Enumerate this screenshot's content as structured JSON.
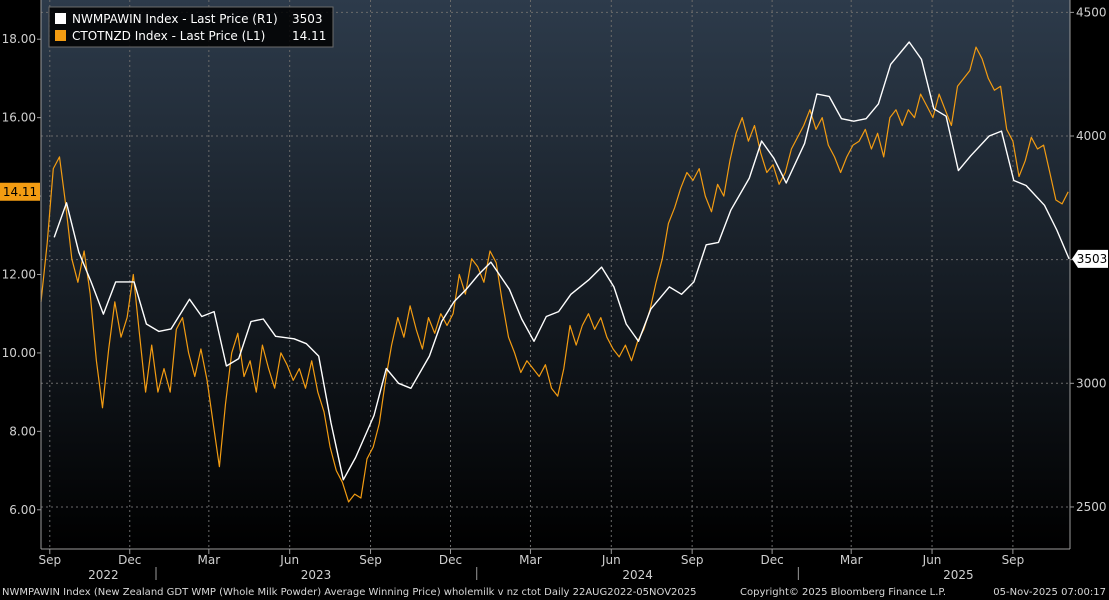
{
  "chart_data": {
    "type": "line",
    "x_range": [
      "2022-08-22",
      "2025-11-05"
    ],
    "left_axis": {
      "ylim": [
        5.0,
        19.0
      ],
      "ticks": [
        "6.00",
        "8.00",
        "10.00",
        "12.00",
        "14.00",
        "16.00",
        "18.00"
      ],
      "tick_values": [
        6,
        8,
        10,
        12,
        14,
        16,
        18
      ]
    },
    "right_axis": {
      "ylim": [
        2330,
        4550
      ],
      "ticks": [
        "2500",
        "3000",
        "3500",
        "4000",
        "4500"
      ],
      "tick_values": [
        2500,
        3000,
        3500,
        4000,
        4500
      ]
    },
    "month_ticks": [
      {
        "label": "Sep",
        "date": "2022-09-01"
      },
      {
        "label": "Dec",
        "date": "2022-12-01"
      },
      {
        "label": "Mar",
        "date": "2023-03-01"
      },
      {
        "label": "Jun",
        "date": "2023-06-01"
      },
      {
        "label": "Sep",
        "date": "2023-09-01"
      },
      {
        "label": "Dec",
        "date": "2023-12-01"
      },
      {
        "label": "Mar",
        "date": "2024-03-01"
      },
      {
        "label": "Jun",
        "date": "2024-06-01"
      },
      {
        "label": "Sep",
        "date": "2024-09-01"
      },
      {
        "label": "Dec",
        "date": "2024-12-01"
      },
      {
        "label": "Mar",
        "date": "2025-03-01"
      },
      {
        "label": "Jun",
        "date": "2025-06-01"
      },
      {
        "label": "Sep",
        "date": "2025-09-01"
      }
    ],
    "year_labels": [
      {
        "label": "2022",
        "date": "2022-11-01"
      },
      {
        "label": "2023",
        "date": "2023-07-01"
      },
      {
        "label": "2024",
        "date": "2024-07-01"
      },
      {
        "label": "2025",
        "date": "2025-07-01"
      }
    ],
    "year_separators": [
      "2023-01-01",
      "2024-01-01",
      "2025-01-01"
    ],
    "series": [
      {
        "name": "NWMPAWIN Index - Last Price (R1)",
        "last_value": "3503",
        "axis": "right",
        "color": "#ffffff",
        "points": [
          [
            "2022-09-06",
            3590
          ],
          [
            "2022-09-20",
            3730
          ],
          [
            "2022-10-04",
            3530
          ],
          [
            "2022-10-18",
            3410
          ],
          [
            "2022-11-01",
            3280
          ],
          [
            "2022-11-15",
            3410
          ],
          [
            "2022-12-06",
            3410
          ],
          [
            "2022-12-20",
            3240
          ],
          [
            "2023-01-03",
            3210
          ],
          [
            "2023-01-17",
            3220
          ],
          [
            "2023-02-07",
            3340
          ],
          [
            "2023-02-21",
            3270
          ],
          [
            "2023-03-07",
            3290
          ],
          [
            "2023-03-21",
            3070
          ],
          [
            "2023-04-04",
            3100
          ],
          [
            "2023-04-18",
            3250
          ],
          [
            "2023-05-02",
            3260
          ],
          [
            "2023-05-16",
            3190
          ],
          [
            "2023-06-06",
            3180
          ],
          [
            "2023-06-20",
            3160
          ],
          [
            "2023-07-04",
            3110
          ],
          [
            "2023-07-18",
            2840
          ],
          [
            "2023-08-01",
            2610
          ],
          [
            "2023-08-15",
            2700
          ],
          [
            "2023-09-05",
            2870
          ],
          [
            "2023-09-19",
            3060
          ],
          [
            "2023-10-03",
            3000
          ],
          [
            "2023-10-17",
            2980
          ],
          [
            "2023-11-07",
            3110
          ],
          [
            "2023-11-21",
            3250
          ],
          [
            "2023-12-05",
            3330
          ],
          [
            "2023-12-19",
            3380
          ],
          [
            "2024-01-02",
            3440
          ],
          [
            "2024-01-16",
            3490
          ],
          [
            "2024-02-06",
            3380
          ],
          [
            "2024-02-20",
            3260
          ],
          [
            "2024-03-05",
            3170
          ],
          [
            "2024-03-19",
            3270
          ],
          [
            "2024-04-02",
            3290
          ],
          [
            "2024-04-16",
            3360
          ],
          [
            "2024-05-07",
            3420
          ],
          [
            "2024-05-21",
            3470
          ],
          [
            "2024-06-04",
            3390
          ],
          [
            "2024-06-18",
            3240
          ],
          [
            "2024-07-02",
            3170
          ],
          [
            "2024-07-16",
            3300
          ],
          [
            "2024-08-06",
            3390
          ],
          [
            "2024-08-20",
            3360
          ],
          [
            "2024-09-03",
            3410
          ],
          [
            "2024-09-17",
            3560
          ],
          [
            "2024-10-01",
            3570
          ],
          [
            "2024-10-15",
            3700
          ],
          [
            "2024-11-05",
            3830
          ],
          [
            "2024-11-19",
            3980
          ],
          [
            "2024-12-03",
            3910
          ],
          [
            "2024-12-17",
            3810
          ],
          [
            "2025-01-07",
            3970
          ],
          [
            "2025-01-21",
            4170
          ],
          [
            "2025-02-04",
            4160
          ],
          [
            "2025-02-18",
            4070
          ],
          [
            "2025-03-04",
            4060
          ],
          [
            "2025-03-18",
            4070
          ],
          [
            "2025-04-01",
            4130
          ],
          [
            "2025-04-15",
            4290
          ],
          [
            "2025-05-06",
            4380
          ],
          [
            "2025-05-20",
            4310
          ],
          [
            "2025-06-03",
            4110
          ],
          [
            "2025-06-17",
            4080
          ],
          [
            "2025-07-01",
            3860
          ],
          [
            "2025-07-15",
            3920
          ],
          [
            "2025-08-05",
            4000
          ],
          [
            "2025-08-19",
            4020
          ],
          [
            "2025-09-02",
            3820
          ],
          [
            "2025-09-16",
            3800
          ],
          [
            "2025-10-07",
            3720
          ],
          [
            "2025-10-21",
            3620
          ],
          [
            "2025-11-04",
            3503
          ]
        ]
      },
      {
        "name": "CTOTNZD Index - Last Price (L1)",
        "last_value": "14.11",
        "axis": "left",
        "color": "#f39c12",
        "points": [
          [
            "2022-08-22",
            11.3
          ],
          [
            "2022-08-29",
            12.8
          ],
          [
            "2022-09-05",
            14.7
          ],
          [
            "2022-09-12",
            15.0
          ],
          [
            "2022-09-19",
            13.8
          ],
          [
            "2022-09-26",
            12.4
          ],
          [
            "2022-10-03",
            11.8
          ],
          [
            "2022-10-10",
            12.6
          ],
          [
            "2022-10-17",
            11.5
          ],
          [
            "2022-10-24",
            9.8
          ],
          [
            "2022-10-31",
            8.6
          ],
          [
            "2022-11-07",
            10.1
          ],
          [
            "2022-11-14",
            11.3
          ],
          [
            "2022-11-21",
            10.4
          ],
          [
            "2022-11-28",
            10.9
          ],
          [
            "2022-12-05",
            12.0
          ],
          [
            "2022-12-12",
            10.5
          ],
          [
            "2022-12-19",
            9.0
          ],
          [
            "2022-12-26",
            10.2
          ],
          [
            "2023-01-02",
            9.0
          ],
          [
            "2023-01-09",
            9.6
          ],
          [
            "2023-01-16",
            9.0
          ],
          [
            "2023-01-23",
            10.6
          ],
          [
            "2023-01-30",
            10.9
          ],
          [
            "2023-02-06",
            10.0
          ],
          [
            "2023-02-13",
            9.4
          ],
          [
            "2023-02-20",
            10.1
          ],
          [
            "2023-02-27",
            9.3
          ],
          [
            "2023-03-06",
            8.2
          ],
          [
            "2023-03-13",
            7.1
          ],
          [
            "2023-03-20",
            8.7
          ],
          [
            "2023-03-27",
            10.0
          ],
          [
            "2023-04-03",
            10.5
          ],
          [
            "2023-04-10",
            9.4
          ],
          [
            "2023-04-17",
            9.8
          ],
          [
            "2023-04-24",
            9.0
          ],
          [
            "2023-05-01",
            10.2
          ],
          [
            "2023-05-08",
            9.6
          ],
          [
            "2023-05-15",
            9.1
          ],
          [
            "2023-05-22",
            10.0
          ],
          [
            "2023-05-29",
            9.7
          ],
          [
            "2023-06-05",
            9.3
          ],
          [
            "2023-06-12",
            9.6
          ],
          [
            "2023-06-19",
            9.1
          ],
          [
            "2023-06-26",
            9.8
          ],
          [
            "2023-07-03",
            9.0
          ],
          [
            "2023-07-10",
            8.5
          ],
          [
            "2023-07-17",
            7.6
          ],
          [
            "2023-07-24",
            7.0
          ],
          [
            "2023-07-31",
            6.7
          ],
          [
            "2023-08-07",
            6.2
          ],
          [
            "2023-08-14",
            6.4
          ],
          [
            "2023-08-21",
            6.3
          ],
          [
            "2023-08-28",
            7.3
          ],
          [
            "2023-09-04",
            7.6
          ],
          [
            "2023-09-11",
            8.2
          ],
          [
            "2023-09-18",
            9.3
          ],
          [
            "2023-09-25",
            10.2
          ],
          [
            "2023-10-02",
            10.9
          ],
          [
            "2023-10-09",
            10.4
          ],
          [
            "2023-10-16",
            11.2
          ],
          [
            "2023-10-23",
            10.6
          ],
          [
            "2023-10-30",
            10.1
          ],
          [
            "2023-11-06",
            10.9
          ],
          [
            "2023-11-13",
            10.5
          ],
          [
            "2023-11-20",
            11.0
          ],
          [
            "2023-11-27",
            10.7
          ],
          [
            "2023-12-04",
            11.0
          ],
          [
            "2023-12-11",
            12.0
          ],
          [
            "2023-12-18",
            11.5
          ],
          [
            "2023-12-25",
            12.4
          ],
          [
            "2024-01-01",
            12.2
          ],
          [
            "2024-01-08",
            11.8
          ],
          [
            "2024-01-15",
            12.6
          ],
          [
            "2024-01-22",
            12.3
          ],
          [
            "2024-01-29",
            11.3
          ],
          [
            "2024-02-05",
            10.4
          ],
          [
            "2024-02-12",
            10.0
          ],
          [
            "2024-02-19",
            9.5
          ],
          [
            "2024-02-26",
            9.8
          ],
          [
            "2024-03-04",
            9.6
          ],
          [
            "2024-03-11",
            9.4
          ],
          [
            "2024-03-18",
            9.7
          ],
          [
            "2024-03-25",
            9.1
          ],
          [
            "2024-04-01",
            8.9
          ],
          [
            "2024-04-08",
            9.6
          ],
          [
            "2024-04-15",
            10.7
          ],
          [
            "2024-04-22",
            10.2
          ],
          [
            "2024-04-29",
            10.7
          ],
          [
            "2024-05-06",
            11.0
          ],
          [
            "2024-05-13",
            10.6
          ],
          [
            "2024-05-20",
            10.9
          ],
          [
            "2024-05-27",
            10.4
          ],
          [
            "2024-06-03",
            10.1
          ],
          [
            "2024-06-10",
            9.9
          ],
          [
            "2024-06-17",
            10.2
          ],
          [
            "2024-06-24",
            9.8
          ],
          [
            "2024-07-01",
            10.3
          ],
          [
            "2024-07-08",
            10.6
          ],
          [
            "2024-07-15",
            11.1
          ],
          [
            "2024-07-22",
            11.8
          ],
          [
            "2024-07-29",
            12.4
          ],
          [
            "2024-08-05",
            13.3
          ],
          [
            "2024-08-12",
            13.7
          ],
          [
            "2024-08-19",
            14.2
          ],
          [
            "2024-08-26",
            14.6
          ],
          [
            "2024-09-02",
            14.4
          ],
          [
            "2024-09-09",
            14.7
          ],
          [
            "2024-09-16",
            14.0
          ],
          [
            "2024-09-23",
            13.6
          ],
          [
            "2024-09-30",
            14.3
          ],
          [
            "2024-10-07",
            14.0
          ],
          [
            "2024-10-14",
            14.9
          ],
          [
            "2024-10-21",
            15.6
          ],
          [
            "2024-10-28",
            16.0
          ],
          [
            "2024-11-04",
            15.4
          ],
          [
            "2024-11-11",
            15.8
          ],
          [
            "2024-11-18",
            15.1
          ],
          [
            "2024-11-25",
            14.6
          ],
          [
            "2024-12-02",
            14.8
          ],
          [
            "2024-12-09",
            14.3
          ],
          [
            "2024-12-16",
            14.6
          ],
          [
            "2024-12-23",
            15.2
          ],
          [
            "2025-01-06",
            15.8
          ],
          [
            "2025-01-13",
            16.2
          ],
          [
            "2025-01-20",
            15.7
          ],
          [
            "2025-01-27",
            16.0
          ],
          [
            "2025-02-03",
            15.3
          ],
          [
            "2025-02-10",
            15.0
          ],
          [
            "2025-02-17",
            14.6
          ],
          [
            "2025-02-24",
            15.0
          ],
          [
            "2025-03-03",
            15.3
          ],
          [
            "2025-03-10",
            15.4
          ],
          [
            "2025-03-17",
            15.7
          ],
          [
            "2025-03-24",
            15.2
          ],
          [
            "2025-03-31",
            15.6
          ],
          [
            "2025-04-07",
            15.0
          ],
          [
            "2025-04-14",
            16.0
          ],
          [
            "2025-04-21",
            16.2
          ],
          [
            "2025-04-28",
            15.8
          ],
          [
            "2025-05-05",
            16.2
          ],
          [
            "2025-05-12",
            16.0
          ],
          [
            "2025-05-19",
            16.6
          ],
          [
            "2025-05-26",
            16.3
          ],
          [
            "2025-06-02",
            16.0
          ],
          [
            "2025-06-09",
            16.6
          ],
          [
            "2025-06-16",
            16.2
          ],
          [
            "2025-06-23",
            15.8
          ],
          [
            "2025-06-30",
            16.8
          ],
          [
            "2025-07-07",
            17.0
          ],
          [
            "2025-07-14",
            17.2
          ],
          [
            "2025-07-21",
            17.8
          ],
          [
            "2025-07-28",
            17.5
          ],
          [
            "2025-08-04",
            17.0
          ],
          [
            "2025-08-11",
            16.7
          ],
          [
            "2025-08-18",
            16.8
          ],
          [
            "2025-08-25",
            15.7
          ],
          [
            "2025-09-01",
            15.4
          ],
          [
            "2025-09-08",
            14.5
          ],
          [
            "2025-09-15",
            14.9
          ],
          [
            "2025-09-22",
            15.5
          ],
          [
            "2025-09-29",
            15.2
          ],
          [
            "2025-10-06",
            15.3
          ],
          [
            "2025-10-13",
            14.6
          ],
          [
            "2025-10-20",
            13.9
          ],
          [
            "2025-10-27",
            13.8
          ],
          [
            "2025-11-03",
            14.11
          ]
        ]
      }
    ],
    "grid": true,
    "legend_position": "top-left"
  },
  "footer": {
    "description": "NWMPAWIN Index (New Zealand GDT WMP (Whole Milk Powder) Average Winning Price) wholemilk v nz ctot Daily 22AUG2022-05NOV2025",
    "copyright": "Copyright© 2025 Bloomberg Finance L.P.",
    "timestamp": "05-Nov-2025 07:00:17"
  }
}
